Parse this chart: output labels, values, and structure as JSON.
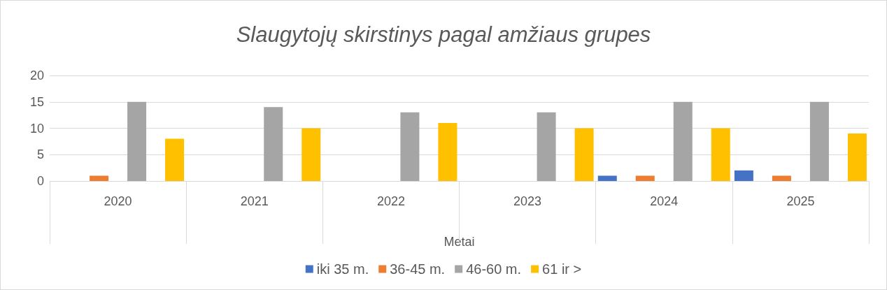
{
  "chart_data": {
    "type": "bar",
    "title": "Slaugytojų skirstinys pagal amžiaus grupes",
    "xlabel": "Metai",
    "categories": [
      "2020",
      "2021",
      "2022",
      "2023",
      "2024",
      "2025"
    ],
    "series": [
      {
        "name": "iki 35 m.",
        "color": "#4472c4",
        "values": [
          0,
          0,
          0,
          0,
          1,
          2
        ]
      },
      {
        "name": "36-45 m.",
        "color": "#ed7d31",
        "values": [
          1,
          0,
          0,
          0,
          1,
          1
        ]
      },
      {
        "name": "46-60 m.",
        "color": "#a5a5a5",
        "values": [
          15,
          14,
          13,
          13,
          15,
          15
        ]
      },
      {
        "name": "61 ir >",
        "color": "#ffc000",
        "values": [
          8,
          10,
          11,
          10,
          10,
          9
        ]
      }
    ],
    "ylim": [
      0,
      20
    ],
    "yticks": [
      0,
      5,
      10,
      15,
      20
    ],
    "grid": "y",
    "legend": "bottom"
  }
}
